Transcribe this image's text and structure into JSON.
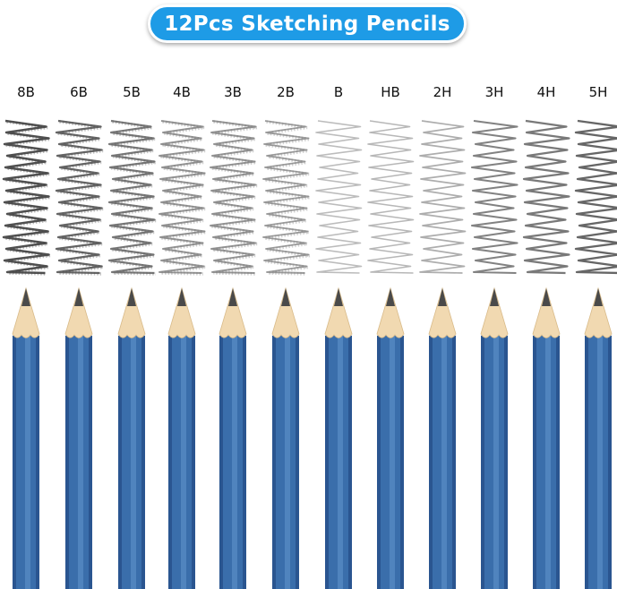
{
  "title": "12Pcs Sketching Pencils",
  "colors": {
    "banner": "#1e9be6",
    "pencil_body": "#3a6eab",
    "pencil_highlight": "#5f93cc",
    "pencil_shadow": "#2a5590",
    "wood": "#f1d9b1",
    "lead": "#4a4a4a"
  },
  "pencils": [
    {
      "grade": "8B",
      "darkness": 0.95
    },
    {
      "grade": "6B",
      "darkness": 0.85
    },
    {
      "grade": "5B",
      "darkness": 0.75
    },
    {
      "grade": "4B",
      "darkness": 0.6
    },
    {
      "grade": "3B",
      "darkness": 0.6
    },
    {
      "grade": "2B",
      "darkness": 0.55
    },
    {
      "grade": "B",
      "darkness": 0.35
    },
    {
      "grade": "HB",
      "darkness": 0.38
    },
    {
      "grade": "2H",
      "darkness": 0.45
    },
    {
      "grade": "3H",
      "darkness": 0.7
    },
    {
      "grade": "4H",
      "darkness": 0.75
    },
    {
      "grade": "5H",
      "darkness": 0.85
    }
  ]
}
